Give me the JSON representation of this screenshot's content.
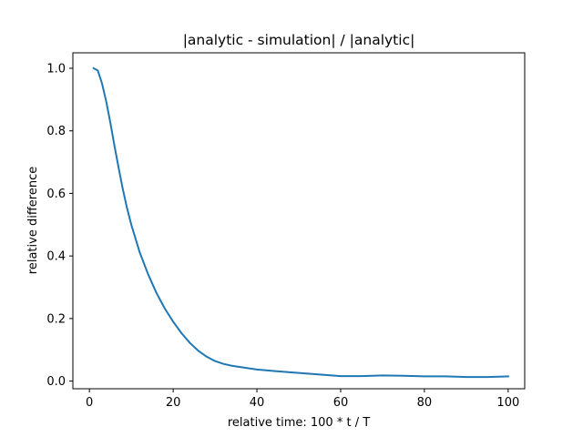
{
  "chart_data": {
    "type": "line",
    "title": "|analytic - simulation| / |analytic|",
    "xlabel": "relative time: 100 * t / T",
    "ylabel": "relative difference",
    "xlim": [
      -3.95,
      103.95
    ],
    "ylim": [
      -0.0245,
      1.0495
    ],
    "xticks": [
      0,
      20,
      40,
      60,
      80,
      100
    ],
    "xtick_labels": [
      "0",
      "20",
      "40",
      "60",
      "80",
      "100"
    ],
    "yticks": [
      0.0,
      0.2,
      0.4,
      0.6,
      0.8,
      1.0
    ],
    "ytick_labels": [
      "0.0",
      "0.2",
      "0.4",
      "0.6",
      "0.8",
      "1.0"
    ],
    "grid": false,
    "series": [
      {
        "color": "#1f77b4",
        "x": [
          1,
          2,
          3,
          4,
          5,
          6,
          7,
          8,
          9,
          10,
          12,
          14,
          16,
          18,
          20,
          22,
          24,
          26,
          28,
          30,
          32,
          34,
          36,
          38,
          40,
          45,
          50,
          55,
          60,
          65,
          70,
          75,
          80,
          85,
          90,
          95,
          100
        ],
        "y": [
          1.0,
          0.993,
          0.952,
          0.895,
          0.826,
          0.751,
          0.68,
          0.612,
          0.552,
          0.5,
          0.412,
          0.342,
          0.282,
          0.232,
          0.19,
          0.153,
          0.122,
          0.097,
          0.078,
          0.064,
          0.055,
          0.049,
          0.045,
          0.041,
          0.037,
          0.031,
          0.026,
          0.021,
          0.016,
          0.016,
          0.018,
          0.017,
          0.015,
          0.015,
          0.013,
          0.013,
          0.015
        ]
      }
    ]
  }
}
